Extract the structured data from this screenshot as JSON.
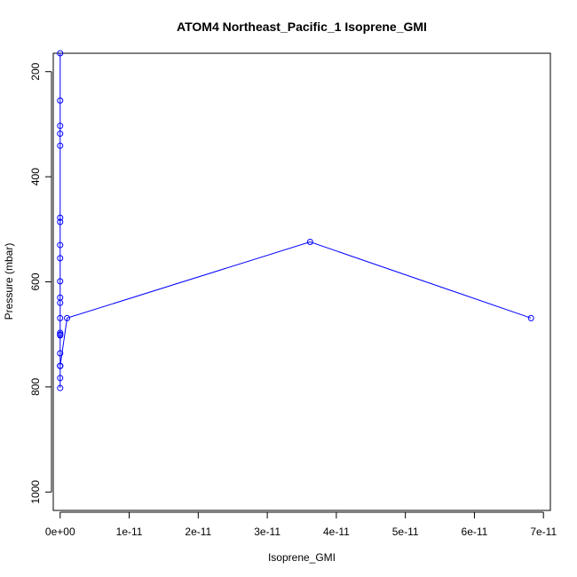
{
  "chart_data": {
    "type": "line",
    "title": "ATOM4 Northeast_Pacific_1 Isoprene_GMI",
    "xlabel": "Isoprene_GMI",
    "ylabel": "Pressure (mbar)",
    "xlim": [
      -1e-12,
      7.1e-11
    ],
    "ylim": [
      1035,
      165
    ],
    "x_reverse": false,
    "y_reverse": true,
    "x_ticks": [
      0,
      1e-11,
      2e-11,
      3e-11,
      4e-11,
      5e-11,
      6e-11,
      7e-11
    ],
    "x_tick_labels": [
      "0e+00",
      "1e-11",
      "2e-11",
      "3e-11",
      "4e-11",
      "5e-11",
      "6e-11",
      "7e-11"
    ],
    "y_ticks": [
      200,
      400,
      600,
      800,
      1000
    ],
    "y_tick_labels": [
      "200",
      "400",
      "600",
      "800",
      "1000"
    ],
    "grid": false,
    "series": [
      {
        "color": "#0000ff",
        "marker": "open-circle",
        "x": [
          0,
          0,
          0,
          0,
          0,
          0,
          0,
          0,
          0,
          0,
          0,
          0,
          0,
          0,
          0,
          0,
          0,
          0,
          0,
          0,
          0,
          0,
          1e-12,
          3.62e-11,
          6.82e-11
        ],
        "y": [
          165,
          255,
          303,
          318,
          341,
          478,
          486,
          530,
          555,
          599,
          630,
          640,
          669,
          697,
          700,
          702,
          736,
          760,
          760,
          783,
          802,
          760,
          669,
          524,
          669
        ]
      }
    ]
  }
}
